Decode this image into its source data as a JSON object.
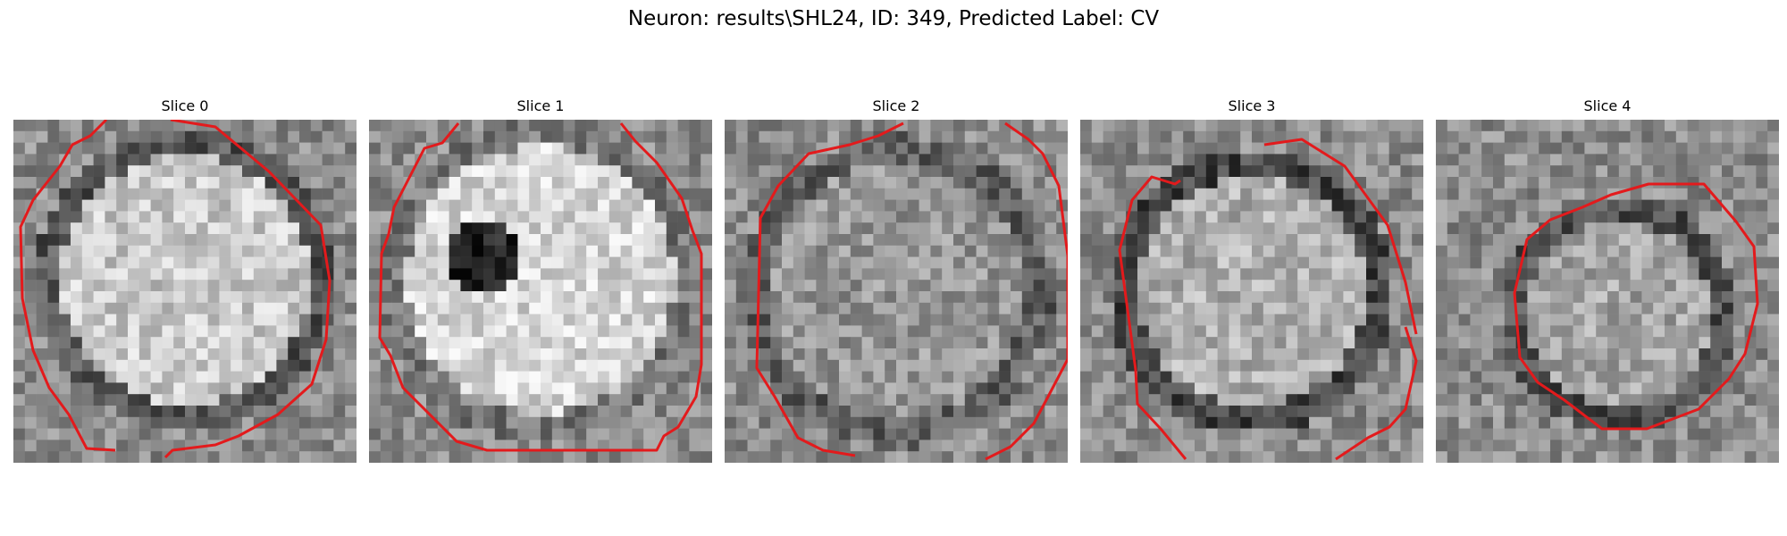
{
  "figure": {
    "title": "Neuron: results\\SHL24, ID: 349, Predicted Label: CV",
    "contour_color": "#e31a1c"
  },
  "slices": [
    {
      "title": "Slice 0"
    },
    {
      "title": "Slice 1"
    },
    {
      "title": "Slice 2"
    },
    {
      "title": "Slice 3"
    },
    {
      "title": "Slice 4"
    }
  ]
}
